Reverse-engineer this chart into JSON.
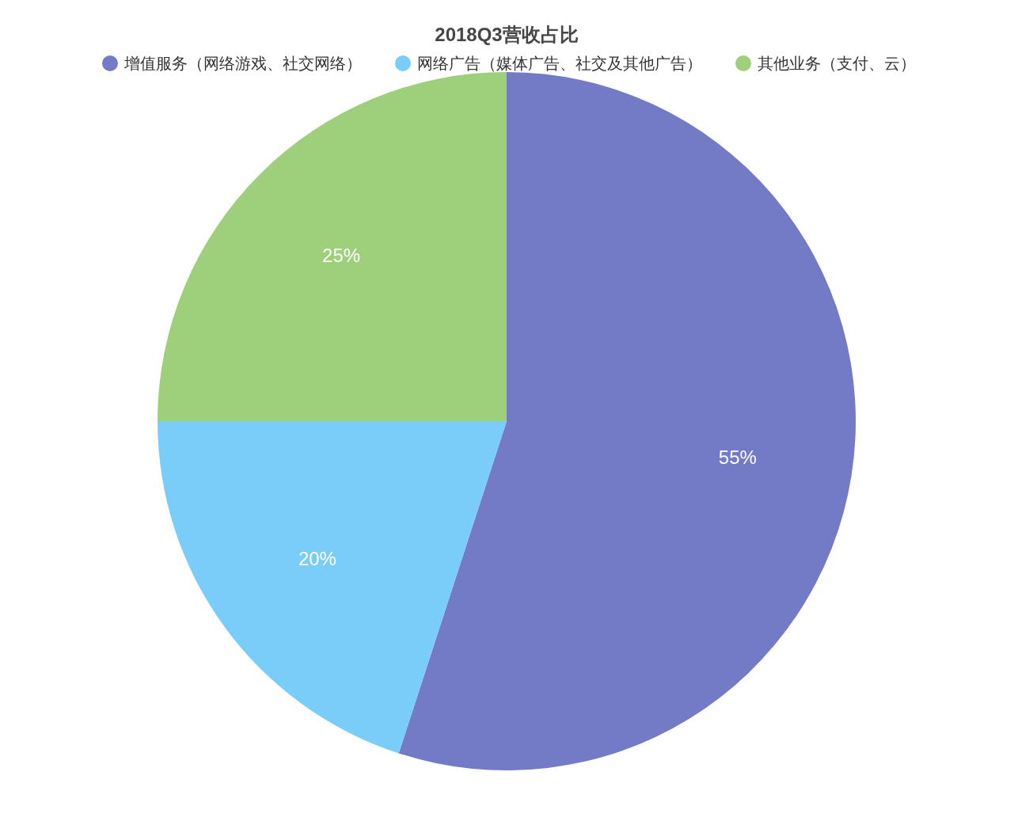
{
  "chart_data": {
    "type": "pie",
    "title": "2018Q3营收占比",
    "categories": [
      "增值服务（网络游戏、社交网络）",
      "网络广告（媒体广告、社交及其他广告）",
      "其他业务（支付、云）"
    ],
    "values": [
      55,
      20,
      25
    ],
    "colors": [
      "#737bc6",
      "#7acdf9",
      "#9ecf7a"
    ],
    "value_labels": [
      "55%",
      "20%",
      "25%"
    ],
    "legend": "top"
  }
}
